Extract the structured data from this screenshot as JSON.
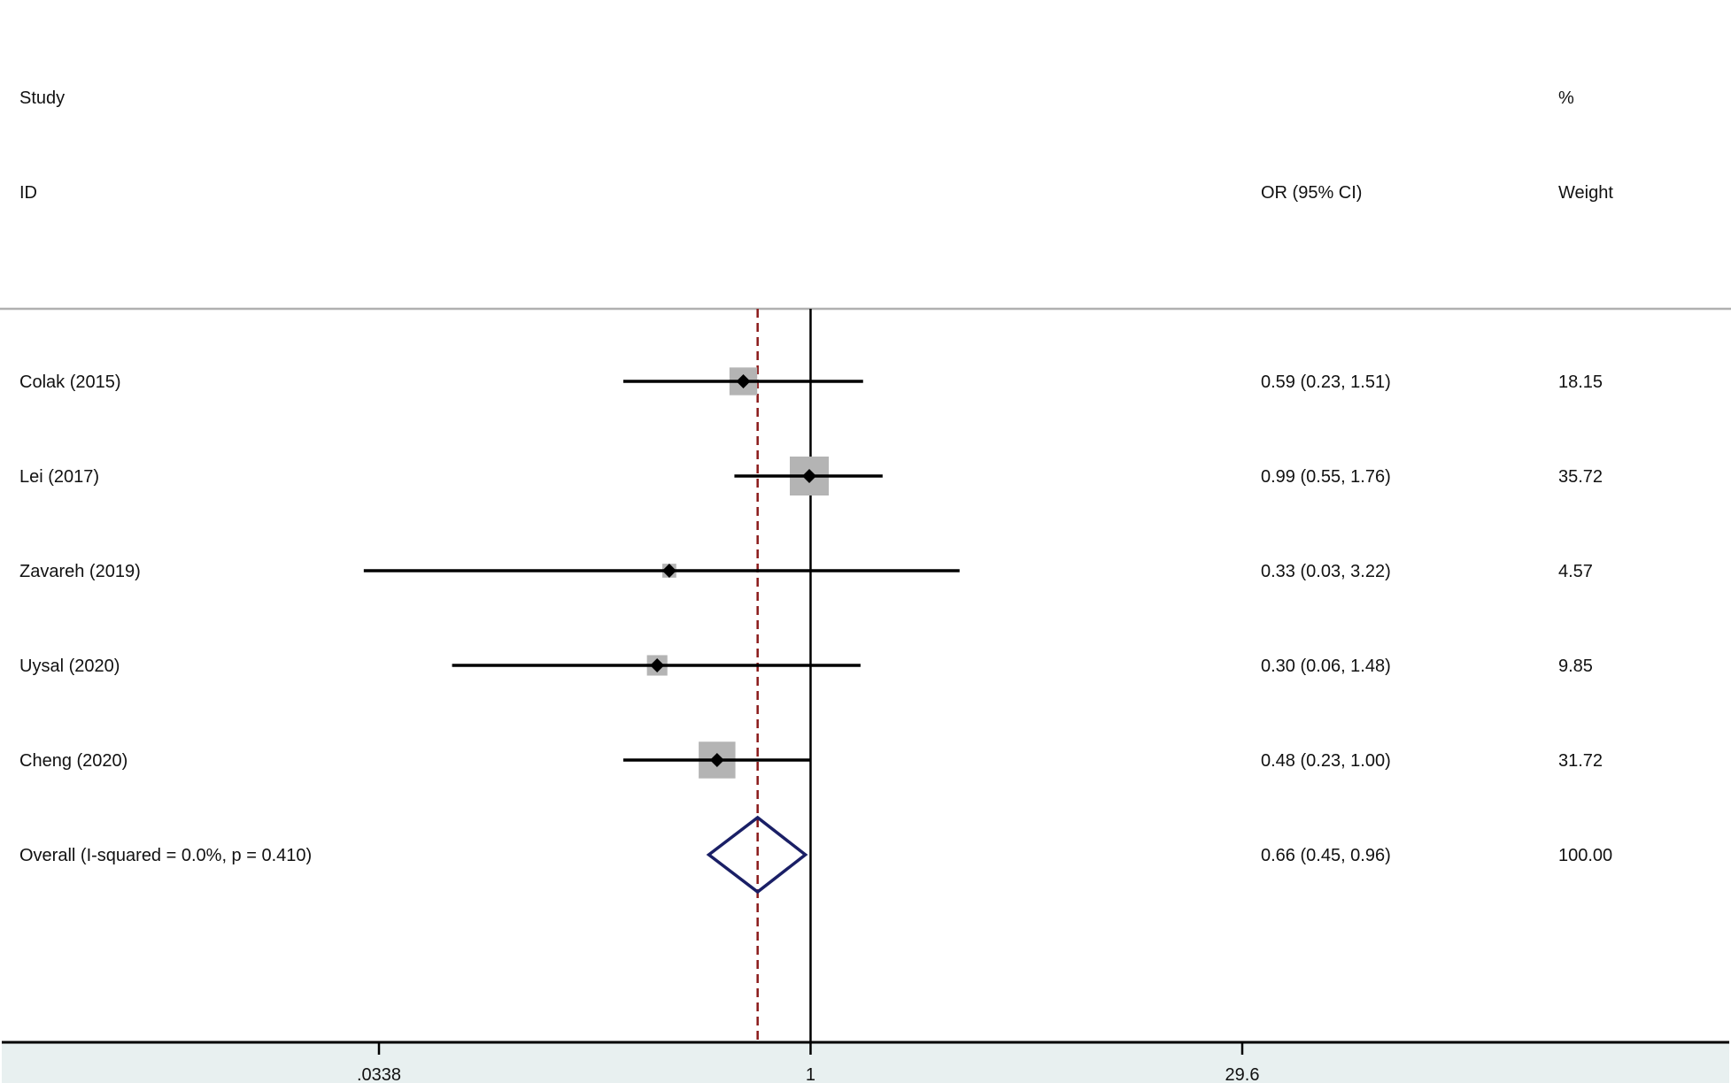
{
  "header": {
    "col1_top": "Study",
    "col1_bottom": "ID",
    "col2_bottom": "OR (95% CI)",
    "col3_top": "%",
    "col3_bottom": "Weight"
  },
  "chart_data": {
    "type": "forest",
    "scale": "log",
    "xticks": [
      {
        "value": 0.0338,
        "label": ".0338"
      },
      {
        "value": 1,
        "label": "1"
      },
      {
        "value": 29.6,
        "label": "29.6"
      }
    ],
    "xlim": [
      0.0338,
      29.6
    ],
    "null_line": 1,
    "pooled_line": 0.66,
    "studies": [
      {
        "name": "Colak (2015)",
        "or": 0.59,
        "lo": 0.23,
        "hi": 1.51,
        "or_text": "0.59 (0.23, 1.51)",
        "weight": 18.15,
        "weight_text": "18.15"
      },
      {
        "name": "Lei (2017)",
        "or": 0.99,
        "lo": 0.55,
        "hi": 1.76,
        "or_text": "0.99 (0.55, 1.76)",
        "weight": 35.72,
        "weight_text": "35.72"
      },
      {
        "name": "Zavareh (2019)",
        "or": 0.33,
        "lo": 0.03,
        "hi": 3.22,
        "or_text": "0.33 (0.03, 3.22)",
        "weight": 4.57,
        "weight_text": "4.57"
      },
      {
        "name": "Uysal (2020)",
        "or": 0.3,
        "lo": 0.06,
        "hi": 1.48,
        "or_text": "0.30 (0.06, 1.48)",
        "weight": 9.85,
        "weight_text": "9.85"
      },
      {
        "name": "Cheng (2020)",
        "or": 0.48,
        "lo": 0.23,
        "hi": 1.0,
        "or_text": "0.48 (0.23, 1.00)",
        "weight": 31.72,
        "weight_text": "31.72"
      }
    ],
    "overall": {
      "name": "Overall  (I-squared = 0.0%, p = 0.410)",
      "or": 0.66,
      "lo": 0.45,
      "hi": 0.96,
      "or_text": "0.66 (0.45, 0.96)",
      "weight_text": "100.00"
    },
    "colors": {
      "weight_box": "#b4b4b4",
      "ci_line": "#000000",
      "diamond": "#1a1f66",
      "pooled_line": "#8b1a1a",
      "axis_band": "#e8f0f0",
      "separator": "#b0b0b0"
    }
  }
}
